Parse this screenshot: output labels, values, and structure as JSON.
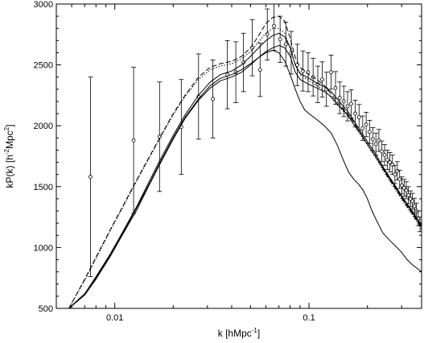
{
  "chart_data": {
    "type": "scatter",
    "title": "",
    "xlabel": "k [hMpc",
    "xlabel_sup": "-1",
    "xlabel_end": "]",
    "ylabel": "kP(k) [h",
    "ylabel_sup1": "-2",
    "ylabel_mid": "Mpc",
    "ylabel_sup2": "2",
    "ylabel_end": "]",
    "xscale": "log",
    "xlim": [
      0.005,
      0.38
    ],
    "ylim": [
      500,
      3000
    ],
    "grid": false,
    "legend": "none",
    "x_ticks": [
      0.01,
      0.1
    ],
    "x_tick_labels": [
      "0.01",
      "0.1"
    ],
    "y_ticks": [
      500,
      1000,
      1500,
      2000,
      2500,
      3000
    ],
    "y_tick_labels": [
      "500",
      "1000",
      "1500",
      "2000",
      "2500",
      "3000"
    ],
    "series": [
      {
        "style": "points-with-error-bars",
        "x": [
          0.0075,
          0.0125,
          0.017,
          0.022,
          0.027,
          0.032,
          0.038,
          0.042,
          0.046,
          0.051,
          0.056,
          0.061,
          0.066,
          0.071,
          0.076,
          0.081,
          0.087,
          0.093,
          0.099,
          0.105,
          0.111,
          0.117,
          0.123,
          0.13,
          0.137,
          0.144,
          0.151,
          0.158,
          0.165,
          0.173,
          0.181,
          0.189,
          0.197,
          0.205,
          0.213,
          0.221,
          0.229,
          0.237,
          0.245,
          0.253,
          0.261,
          0.269,
          0.277,
          0.285,
          0.293,
          0.301,
          0.309,
          0.317,
          0.325,
          0.333,
          0.341,
          0.349,
          0.357,
          0.365,
          0.373
        ],
        "y": [
          1580,
          1880,
          1910,
          1990,
          2240,
          2220,
          2420,
          2440,
          2520,
          2640,
          2460,
          2750,
          2820,
          2710,
          2670,
          2600,
          2500,
          2450,
          2440,
          2400,
          2340,
          2380,
          2300,
          2440,
          2310,
          2230,
          2200,
          2160,
          2180,
          2100,
          2070,
          1980,
          2010,
          1950,
          1890,
          1850,
          1880,
          1790,
          1760,
          1720,
          1700,
          1680,
          1600,
          1630,
          1560,
          1510,
          1490,
          1470,
          1430,
          1400,
          1380,
          1340,
          1300,
          1240,
          1190
        ],
        "yerr": [
          820,
          600,
          450,
          390,
          350,
          320,
          280,
          250,
          240,
          230,
          220,
          210,
          200,
          190,
          180,
          175,
          170,
          165,
          160,
          155,
          150,
          145,
          140,
          140,
          135,
          130,
          125,
          120,
          115,
          110,
          105,
          100,
          100,
          95,
          95,
          90,
          90,
          85,
          85,
          80,
          80,
          80,
          75,
          75,
          75,
          70,
          70,
          70,
          70,
          65,
          65,
          65,
          65,
          60,
          60
        ]
      },
      {
        "style": "dashed",
        "x": [
          0.0058,
          0.007,
          0.008,
          0.0095,
          0.011,
          0.013,
          0.015,
          0.017,
          0.02,
          0.023,
          0.027,
          0.031,
          0.035,
          0.04,
          0.045,
          0.05,
          0.055,
          0.06,
          0.065,
          0.07,
          0.075,
          0.08,
          0.085,
          0.09,
          0.1,
          0.11,
          0.12,
          0.13,
          0.14,
          0.15,
          0.16,
          0.17,
          0.18,
          0.2,
          0.22,
          0.25,
          0.28,
          0.31,
          0.34,
          0.38
        ],
        "y": [
          500,
          740,
          920,
          1150,
          1340,
          1560,
          1740,
          1900,
          2100,
          2250,
          2400,
          2480,
          2510,
          2530,
          2570,
          2640,
          2740,
          2840,
          2890,
          2900,
          2860,
          2720,
          2560,
          2480,
          2420,
          2380,
          2330,
          2260,
          2200,
          2140,
          2090,
          2030,
          1960,
          1850,
          1750,
          1600,
          1480,
          1370,
          1280,
          1160
        ]
      },
      {
        "style": "dotted",
        "x": [
          0.0058,
          0.007,
          0.008,
          0.0095,
          0.011,
          0.013,
          0.015,
          0.017,
          0.02,
          0.023,
          0.027,
          0.031,
          0.035,
          0.04,
          0.045,
          0.05,
          0.055,
          0.06,
          0.065,
          0.07,
          0.075,
          0.08,
          0.085,
          0.09,
          0.1,
          0.11,
          0.12,
          0.13,
          0.14,
          0.15,
          0.16,
          0.17,
          0.18,
          0.2,
          0.22,
          0.25,
          0.28,
          0.31,
          0.34,
          0.38
        ],
        "y": [
          500,
          730,
          910,
          1140,
          1330,
          1550,
          1730,
          1890,
          2090,
          2240,
          2380,
          2460,
          2490,
          2510,
          2550,
          2610,
          2690,
          2760,
          2800,
          2800,
          2760,
          2640,
          2500,
          2420,
          2370,
          2330,
          2290,
          2230,
          2170,
          2120,
          2070,
          2010,
          1950,
          1840,
          1740,
          1590,
          1470,
          1360,
          1270,
          1150
        ]
      },
      {
        "style": "solid",
        "x": [
          0.0058,
          0.007,
          0.008,
          0.0095,
          0.011,
          0.013,
          0.015,
          0.017,
          0.02,
          0.023,
          0.027,
          0.031,
          0.035,
          0.04,
          0.045,
          0.05,
          0.055,
          0.06,
          0.065,
          0.07,
          0.075,
          0.08,
          0.085,
          0.09,
          0.1,
          0.11,
          0.12,
          0.13,
          0.14,
          0.15,
          0.16,
          0.17,
          0.18,
          0.2,
          0.22,
          0.25,
          0.28,
          0.31,
          0.34,
          0.38
        ],
        "y": [
          500,
          620,
          760,
          950,
          1130,
          1340,
          1540,
          1710,
          1920,
          2090,
          2250,
          2360,
          2420,
          2450,
          2500,
          2570,
          2640,
          2700,
          2740,
          2760,
          2730,
          2640,
          2500,
          2430,
          2390,
          2350,
          2320,
          2280,
          2220,
          2160,
          2110,
          2040,
          1980,
          1870,
          1770,
          1620,
          1500,
          1390,
          1300,
          1180
        ]
      },
      {
        "style": "solid",
        "x": [
          0.0058,
          0.007,
          0.008,
          0.0095,
          0.011,
          0.013,
          0.015,
          0.017,
          0.02,
          0.023,
          0.027,
          0.031,
          0.035,
          0.04,
          0.045,
          0.05,
          0.055,
          0.06,
          0.065,
          0.07,
          0.075,
          0.08,
          0.085,
          0.09,
          0.1,
          0.11,
          0.12,
          0.13,
          0.14,
          0.15,
          0.16,
          0.17,
          0.18,
          0.2,
          0.22,
          0.25,
          0.28,
          0.31,
          0.34,
          0.38
        ],
        "y": [
          500,
          610,
          740,
          930,
          1110,
          1310,
          1510,
          1680,
          1890,
          2060,
          2210,
          2310,
          2370,
          2400,
          2440,
          2500,
          2560,
          2610,
          2640,
          2660,
          2640,
          2570,
          2440,
          2380,
          2340,
          2310,
          2280,
          2240,
          2180,
          2130,
          2080,
          2010,
          1960,
          1850,
          1750,
          1610,
          1490,
          1380,
          1290,
          1170
        ]
      },
      {
        "style": "solid",
        "x": [
          0.0058,
          0.007,
          0.008,
          0.0095,
          0.011,
          0.013,
          0.015,
          0.017,
          0.02,
          0.023,
          0.027,
          0.031,
          0.035,
          0.04,
          0.045,
          0.05,
          0.055,
          0.06,
          0.065,
          0.07,
          0.075,
          0.08,
          0.085,
          0.09,
          0.095,
          0.1,
          0.11,
          0.12,
          0.13,
          0.14,
          0.15,
          0.16,
          0.17,
          0.18,
          0.19,
          0.2,
          0.21,
          0.22,
          0.24,
          0.26,
          0.28,
          0.3,
          0.32,
          0.34,
          0.36,
          0.38
        ],
        "y": [
          500,
          620,
          750,
          940,
          1120,
          1330,
          1520,
          1690,
          1900,
          2070,
          2220,
          2330,
          2390,
          2420,
          2460,
          2510,
          2560,
          2600,
          2620,
          2600,
          2530,
          2420,
          2300,
          2200,
          2130,
          2100,
          2050,
          2000,
          1940,
          1840,
          1720,
          1620,
          1560,
          1520,
          1470,
          1400,
          1310,
          1240,
          1120,
          1060,
          1010,
          960,
          900,
          860,
          830,
          800
        ]
      }
    ]
  }
}
